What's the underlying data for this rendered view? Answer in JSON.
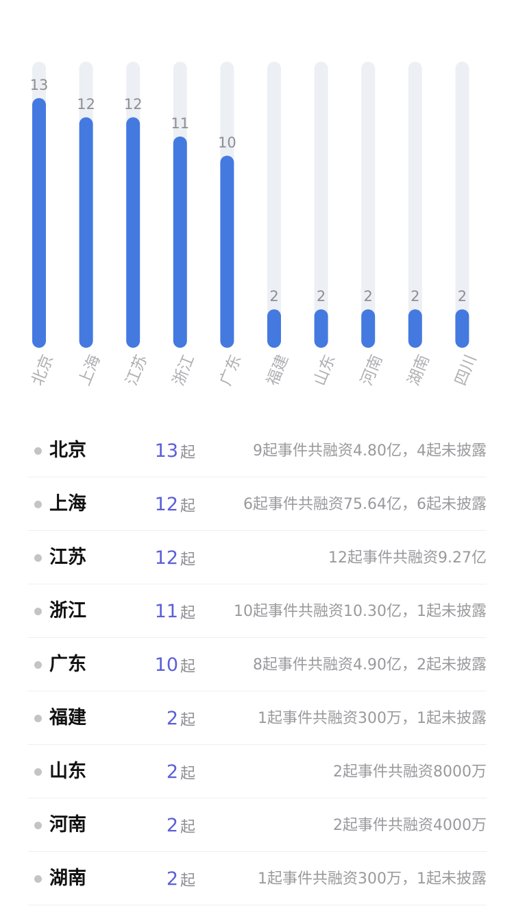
{
  "chart_data": {
    "type": "bar",
    "categories": [
      "北京",
      "上海",
      "江苏",
      "浙江",
      "广东",
      "福建",
      "山东",
      "河南",
      "湖南",
      "四川"
    ],
    "values": [
      13,
      12,
      12,
      11,
      10,
      2,
      2,
      2,
      2,
      2
    ],
    "ylim": [
      0,
      15
    ],
    "grid": false,
    "colors": {
      "bar": "#4479e0",
      "track": "#eceff4",
      "value_label": "#8e8e93",
      "category_label": "#b0b0b4"
    }
  },
  "list": {
    "unit": "起",
    "rows": [
      {
        "name": "北京",
        "count": "13",
        "desc": "9起事件共融资4.80亿，4起未披露"
      },
      {
        "name": "上海",
        "count": "12",
        "desc": "6起事件共融资75.64亿，6起未披露"
      },
      {
        "name": "江苏",
        "count": "12",
        "desc": "12起事件共融资9.27亿"
      },
      {
        "name": "浙江",
        "count": "11",
        "desc": "10起事件共融资10.30亿，1起未披露"
      },
      {
        "name": "广东",
        "count": "10",
        "desc": "8起事件共融资4.90亿，2起未披露"
      },
      {
        "name": "福建",
        "count": "2",
        "desc": "1起事件共融资300万，1起未披露"
      },
      {
        "name": "山东",
        "count": "2",
        "desc": "2起事件共融资8000万"
      },
      {
        "name": "河南",
        "count": "2",
        "desc": "2起事件共融资4000万"
      },
      {
        "name": "湖南",
        "count": "2",
        "desc": "1起事件共融资300万，1起未披露"
      }
    ]
  }
}
